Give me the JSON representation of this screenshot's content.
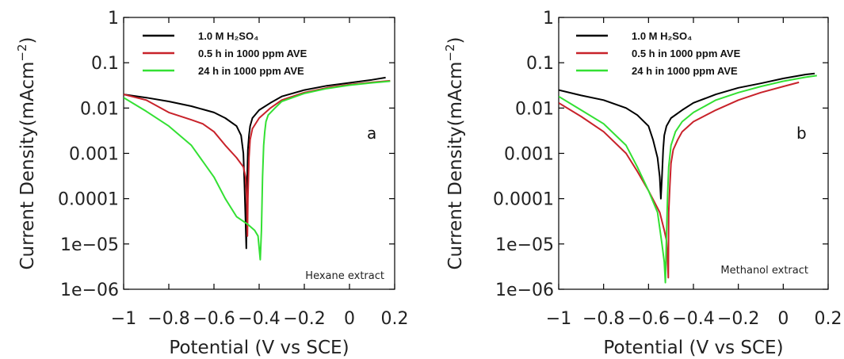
{
  "chart_data": [
    {
      "type": "line",
      "panel_label": "a",
      "annotation": "Hexane extract",
      "xlabel": "Potential (V vs SCE)",
      "ylabel": "Current Density(mAcm",
      "ylabel_sup": "−2",
      "ylabel_close": ")",
      "xlim": [
        -1,
        0.2
      ],
      "ylim": [
        1e-06,
        1
      ],
      "yscale": "log",
      "x_ticks": [
        -1,
        -0.8,
        -0.6,
        -0.4,
        -0.2,
        0,
        0.2
      ],
      "x_tick_labels": [
        "−1",
        "−0.8",
        "−0.6",
        "−0.4",
        "−0.2",
        "0",
        "0.2"
      ],
      "y_ticks": [
        1,
        0.1,
        0.01,
        0.001,
        0.0001,
        1e-05,
        1e-06
      ],
      "y_tick_labels": [
        "1",
        "0.1",
        "0.01",
        "0.001",
        "0.0001",
        "1e−05",
        "1e−06"
      ],
      "grid": false,
      "legend_position": "top-left",
      "series": [
        {
          "name": "1.0 M H₂SO₄",
          "color": "#000000",
          "x": [
            -1.0,
            -0.9,
            -0.8,
            -0.7,
            -0.6,
            -0.55,
            -0.5,
            -0.48,
            -0.47,
            -0.465,
            -0.46,
            -0.457,
            -0.455,
            -0.45,
            -0.445,
            -0.44,
            -0.43,
            -0.4,
            -0.35,
            -0.3,
            -0.2,
            -0.1,
            0.0,
            0.1,
            0.16
          ],
          "y": [
            0.02,
            0.017,
            0.014,
            0.011,
            0.008,
            0.006,
            0.004,
            0.0025,
            0.001,
            0.0002,
            3e-05,
            8e-06,
            0.0001,
            0.0012,
            0.0025,
            0.004,
            0.006,
            0.009,
            0.013,
            0.018,
            0.025,
            0.031,
            0.036,
            0.042,
            0.047
          ]
        },
        {
          "name": "0.5 h in 1000 ppm AVE",
          "color": "#c8222a",
          "x": [
            -1.0,
            -0.9,
            -0.8,
            -0.7,
            -0.65,
            -0.6,
            -0.55,
            -0.5,
            -0.47,
            -0.46,
            -0.455,
            -0.452,
            -0.45,
            -0.445,
            -0.44,
            -0.43,
            -0.4,
            -0.35,
            -0.3,
            -0.2,
            -0.1,
            0.0,
            0.1,
            0.18
          ],
          "y": [
            0.02,
            0.015,
            0.008,
            0.0055,
            0.0045,
            0.003,
            0.0015,
            0.0008,
            0.0005,
            0.0003,
            0.0001,
            1.5e-05,
            0.0001,
            0.0008,
            0.002,
            0.0035,
            0.006,
            0.01,
            0.015,
            0.022,
            0.028,
            0.033,
            0.037,
            0.04
          ]
        },
        {
          "name": "24 h in 1000 ppm AVE",
          "color": "#33e033",
          "x": [
            -1.0,
            -0.9,
            -0.8,
            -0.7,
            -0.6,
            -0.55,
            -0.5,
            -0.45,
            -0.42,
            -0.405,
            -0.395,
            -0.39,
            -0.385,
            -0.38,
            -0.375,
            -0.37,
            -0.36,
            -0.33,
            -0.3,
            -0.2,
            -0.1,
            0.0,
            0.1,
            0.18
          ],
          "y": [
            0.017,
            0.0085,
            0.004,
            0.0015,
            0.0003,
            0.0001,
            4e-05,
            2.7e-05,
            2e-05,
            1.5e-05,
            4.5e-06,
            2e-05,
            0.0003,
            0.0015,
            0.003,
            0.005,
            0.007,
            0.01,
            0.014,
            0.021,
            0.027,
            0.032,
            0.036,
            0.039
          ]
        }
      ]
    },
    {
      "type": "line",
      "panel_label": "b",
      "annotation": "Methanol extract",
      "xlabel": "Potential (V vs SCE)",
      "ylabel": "Current Density(mAcm",
      "ylabel_sup": "−2",
      "ylabel_close": ")",
      "xlim": [
        -1,
        0.2
      ],
      "ylim": [
        1e-06,
        1
      ],
      "yscale": "log",
      "x_ticks": [
        -1,
        -0.8,
        -0.6,
        -0.4,
        -0.2,
        0,
        0.2
      ],
      "x_tick_labels": [
        "−1",
        "−0.8",
        "−0.6",
        "−0.4",
        "−0.2",
        "0",
        "0.2"
      ],
      "y_ticks": [
        1,
        0.1,
        0.01,
        0.001,
        0.0001,
        1e-05,
        1e-06
      ],
      "y_tick_labels": [
        "1",
        "0.1",
        "0.01",
        "0.001",
        "0.0001",
        "1e−05",
        "1e−06"
      ],
      "grid": false,
      "legend_position": "top-left",
      "series": [
        {
          "name": "1.0 M H₂SO₄",
          "color": "#000000",
          "x": [
            -1.0,
            -0.9,
            -0.8,
            -0.7,
            -0.65,
            -0.6,
            -0.58,
            -0.56,
            -0.55,
            -0.545,
            -0.54,
            -0.535,
            -0.53,
            -0.52,
            -0.5,
            -0.45,
            -0.4,
            -0.3,
            -0.2,
            -0.1,
            0.0,
            0.1,
            0.14
          ],
          "y": [
            0.025,
            0.019,
            0.015,
            0.01,
            0.007,
            0.004,
            0.002,
            0.0008,
            0.0003,
            0.0001,
            0.0003,
            0.0012,
            0.0025,
            0.004,
            0.006,
            0.009,
            0.013,
            0.02,
            0.028,
            0.035,
            0.045,
            0.055,
            0.058
          ]
        },
        {
          "name": "0.5 h in 1000 ppm AVE",
          "color": "#c8222a",
          "x": [
            -1.0,
            -0.9,
            -0.8,
            -0.7,
            -0.65,
            -0.6,
            -0.55,
            -0.53,
            -0.52,
            -0.515,
            -0.512,
            -0.51,
            -0.505,
            -0.5,
            -0.49,
            -0.47,
            -0.45,
            -0.4,
            -0.3,
            -0.2,
            -0.1,
            0.0,
            0.07
          ],
          "y": [
            0.013,
            0.0065,
            0.003,
            0.001,
            0.0004,
            0.00015,
            5e-05,
            2e-05,
            1.2e-05,
            4e-06,
            1.8e-06,
            5e-05,
            0.0002,
            0.0006,
            0.0012,
            0.002,
            0.003,
            0.005,
            0.009,
            0.015,
            0.022,
            0.03,
            0.037
          ]
        },
        {
          "name": "24 h in 1000 ppm AVE",
          "color": "#33e033",
          "x": [
            -1.0,
            -0.9,
            -0.8,
            -0.7,
            -0.65,
            -0.6,
            -0.56,
            -0.54,
            -0.53,
            -0.525,
            -0.52,
            -0.515,
            -0.51,
            -0.5,
            -0.48,
            -0.45,
            -0.4,
            -0.3,
            -0.2,
            -0.1,
            0.0,
            0.1,
            0.15
          ],
          "y": [
            0.018,
            0.009,
            0.0045,
            0.0015,
            0.0005,
            0.00015,
            5e-05,
            1e-05,
            4e-06,
            1.4e-06,
            1.5e-05,
            0.00012,
            0.0005,
            0.0015,
            0.003,
            0.005,
            0.008,
            0.015,
            0.022,
            0.03,
            0.039,
            0.048,
            0.052
          ]
        }
      ]
    }
  ]
}
